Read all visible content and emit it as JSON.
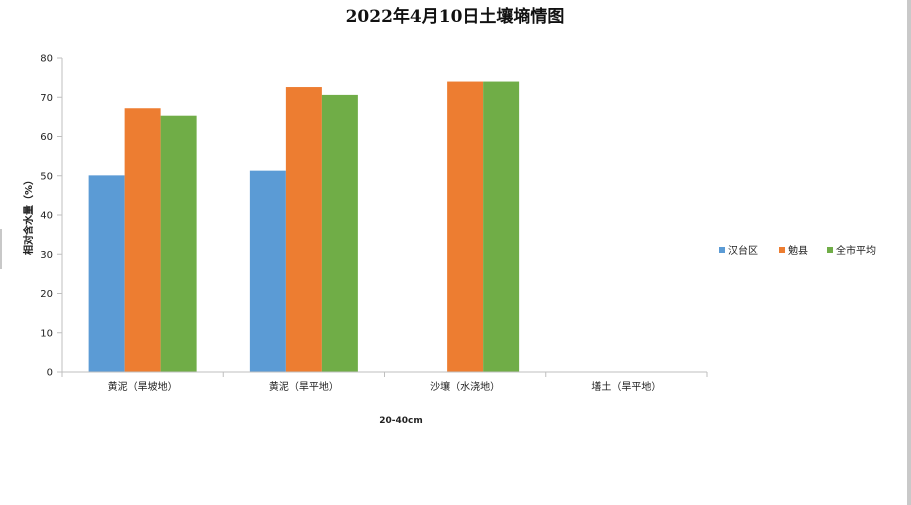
{
  "chart_data": {
    "type": "bar",
    "title": "2022年4月10日土壤墒情图",
    "xlabel": "20-40cm",
    "ylabel": "相对含水量（%）",
    "ylim": [
      0,
      80
    ],
    "yticks": [
      0,
      10,
      20,
      30,
      40,
      50,
      60,
      70,
      80
    ],
    "categories": [
      "黄泥（旱坡地）",
      "黄泥（旱平地）",
      "沙壤（水浇地）",
      "墡土（旱平地）"
    ],
    "series": [
      {
        "name": "汉台区",
        "color": "#5b9bd5",
        "values": [
          50.1,
          51.3,
          null,
          null
        ]
      },
      {
        "name": "勉县",
        "color": "#ed7d31",
        "values": [
          67.2,
          72.6,
          74.0,
          null
        ]
      },
      {
        "name": "全市平均",
        "color": "#70ad47",
        "values": [
          65.3,
          70.6,
          74.0,
          null
        ]
      }
    ],
    "grid": false,
    "legend_position": "right"
  }
}
